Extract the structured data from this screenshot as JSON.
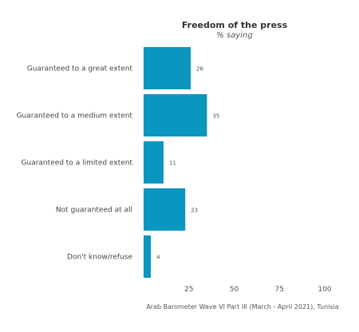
{
  "chart_data": {
    "type": "bar",
    "orientation": "horizontal",
    "title": "Freedom of the press",
    "subtitle": "% saying",
    "categories": [
      "Guaranteed to a great extent",
      "Guaranteed to a medium extent",
      "Guaranteed to a limited extent",
      "Not guaranteed at all",
      "Don't know/refuse"
    ],
    "values": [
      26,
      35,
      11,
      23,
      4
    ],
    "value_labels": [
      "26",
      "35",
      "11",
      "23",
      "4"
    ],
    "xlim": [
      0,
      100
    ],
    "x_ticks": [
      "25",
      "50",
      "75",
      "100"
    ],
    "grid": false,
    "bar_color": "#0a96be",
    "caption": "Arab Barometer Wave VI Part III (March - April 2021), Tunisia"
  }
}
